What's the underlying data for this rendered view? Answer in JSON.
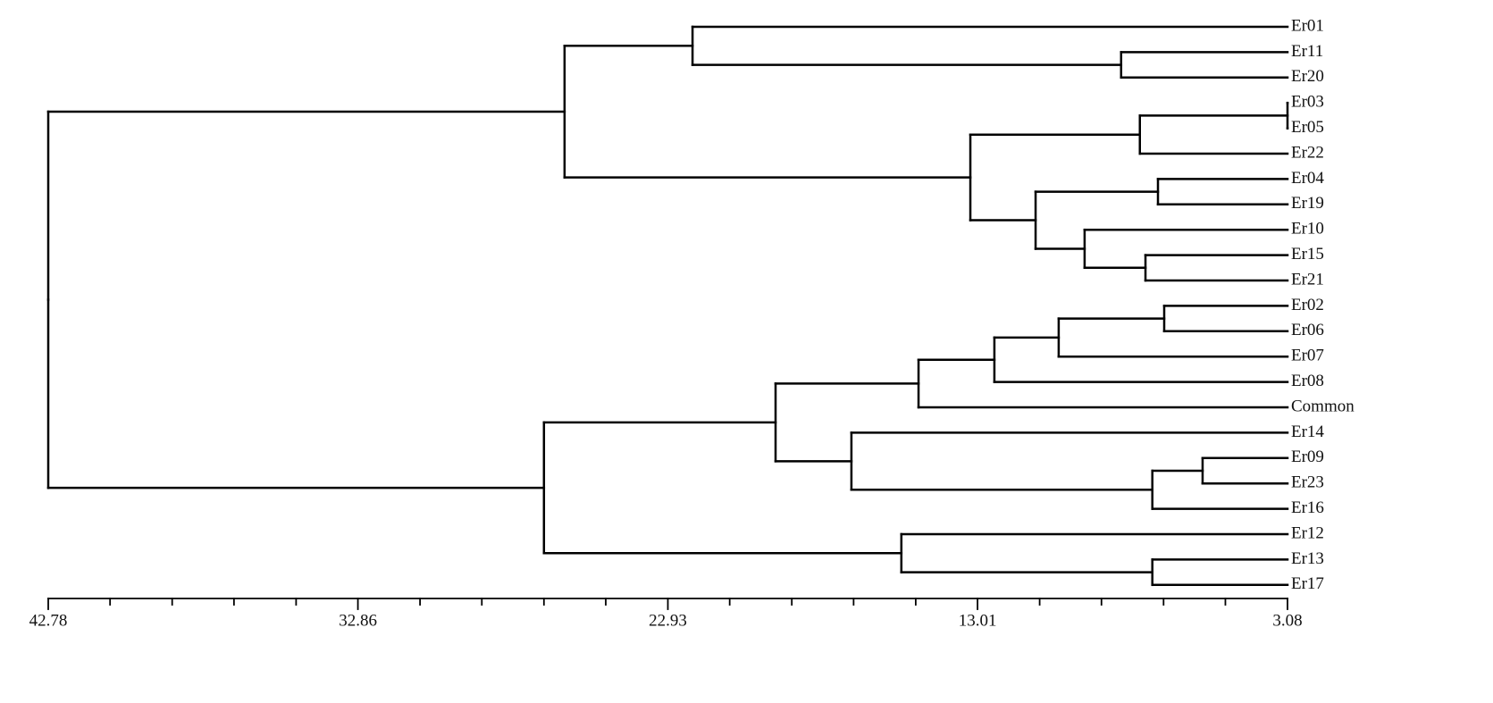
{
  "chart_data": {
    "type": "dendrogram",
    "orientation": "horizontal",
    "color": "#000000",
    "xlim": [
      42.78,
      3.08
    ],
    "xticks": [
      42.78,
      32.86,
      22.93,
      13.01,
      3.08
    ],
    "xminorticks": [
      40.8,
      38.81,
      36.83,
      34.84,
      30.87,
      28.89,
      26.9,
      24.92,
      20.95,
      18.96,
      16.98,
      14.99,
      11.02,
      9.04,
      7.05,
      5.07
    ],
    "tree": {
      "height": 42.78,
      "children": [
        {
          "height": 26.24,
          "children": [
            {
              "height": 22.14,
              "children": [
                {
                  "label": "Er01"
                },
                {
                  "height": 8.41,
                  "children": [
                    {
                      "label": "Er11"
                    },
                    {
                      "label": "Er20"
                    }
                  ]
                }
              ]
            },
            {
              "height": 13.24,
              "children": [
                {
                  "height": 7.81,
                  "children": [
                    {
                      "height": 3.08,
                      "children": [
                        {
                          "label": "Er03"
                        },
                        {
                          "label": "Er05"
                        }
                      ]
                    },
                    {
                      "label": "Er22"
                    }
                  ]
                },
                {
                  "height": 11.15,
                  "children": [
                    {
                      "height": 7.23,
                      "children": [
                        {
                          "label": "Er04"
                        },
                        {
                          "label": "Er19"
                        }
                      ]
                    },
                    {
                      "height": 9.58,
                      "children": [
                        {
                          "label": "Er10"
                        },
                        {
                          "height": 7.63,
                          "children": [
                            {
                              "label": "Er15"
                            },
                            {
                              "label": "Er21"
                            }
                          ]
                        }
                      ]
                    }
                  ]
                }
              ]
            }
          ]
        },
        {
          "height": 26.9,
          "children": [
            {
              "height": 19.48,
              "children": [
                {
                  "height": 14.9,
                  "children": [
                    {
                      "height": 12.47,
                      "children": [
                        {
                          "height": 10.41,
                          "children": [
                            {
                              "height": 7.03,
                              "children": [
                                {
                                  "label": "Er02"
                                },
                                {
                                  "label": "Er06"
                                }
                              ]
                            },
                            {
                              "label": "Er07"
                            }
                          ]
                        },
                        {
                          "label": "Er08"
                        }
                      ]
                    },
                    {
                      "label": "Common"
                    }
                  ]
                },
                {
                  "height": 17.05,
                  "children": [
                    {
                      "label": "Er14"
                    },
                    {
                      "height": 7.41,
                      "children": [
                        {
                          "height": 5.8,
                          "children": [
                            {
                              "label": "Er09"
                            },
                            {
                              "label": "Er23"
                            }
                          ]
                        },
                        {
                          "label": "Er16"
                        }
                      ]
                    }
                  ]
                }
              ]
            },
            {
              "height": 15.45,
              "children": [
                {
                  "label": "Er12"
                },
                {
                  "height": 7.41,
                  "children": [
                    {
                      "label": "Er13"
                    },
                    {
                      "label": "Er17"
                    }
                  ]
                }
              ]
            }
          ]
        }
      ]
    }
  }
}
